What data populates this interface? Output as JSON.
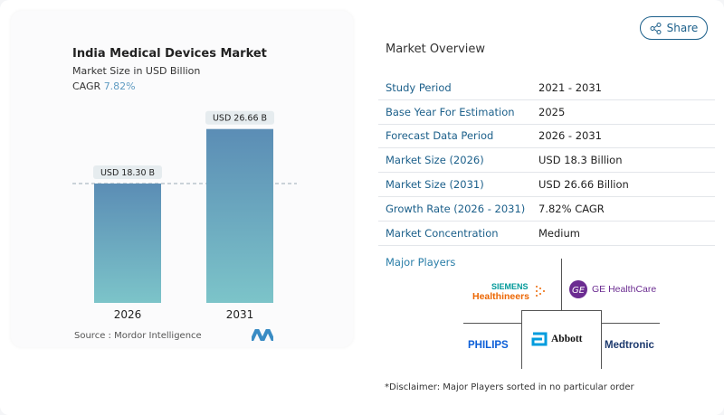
{
  "share_label": "Share",
  "chart_data": {
    "type": "bar",
    "title": "India Medical Devices Market",
    "subtitle": "Market Size in USD Billion",
    "cagr_label": "CAGR",
    "cagr_value": "7.82%",
    "categories": [
      "2026",
      "2031"
    ],
    "values": [
      18.3,
      26.66
    ],
    "data_labels": [
      "USD 18.30 B",
      "USD 26.66 B"
    ],
    "reference_line": 18.3,
    "colors": {
      "bar_top": "#5b8db5",
      "bar_bottom": "#7cc4c9"
    },
    "source": "Source :  Mordor Intelligence"
  },
  "overview": {
    "title": "Market Overview",
    "rows": [
      {
        "label": "Study Period",
        "value": "2021 - 2031"
      },
      {
        "label": "Base Year For Estimation",
        "value": "2025"
      },
      {
        "label": "Forecast Data Period",
        "value": "2026 - 2031"
      },
      {
        "label": "Market Size (2026)",
        "value": "USD 18.3 Billion"
      },
      {
        "label": "Market Size (2031)",
        "value": "USD 26.66 Billion"
      },
      {
        "label": "Growth Rate (2026 - 2031)",
        "value": "7.82% CAGR"
      },
      {
        "label": "Market Concentration",
        "value": "Medium"
      }
    ],
    "players_title": "Major Players",
    "players": {
      "siemens_top": "SIEMENS",
      "siemens_bottom": "Healthineers",
      "ge": "GE HealthCare",
      "philips": "PHILIPS",
      "abbott": "Abbott",
      "medtronic": "Medtronic"
    },
    "disclaimer": "*Disclaimer: Major Players sorted in no particular order"
  }
}
